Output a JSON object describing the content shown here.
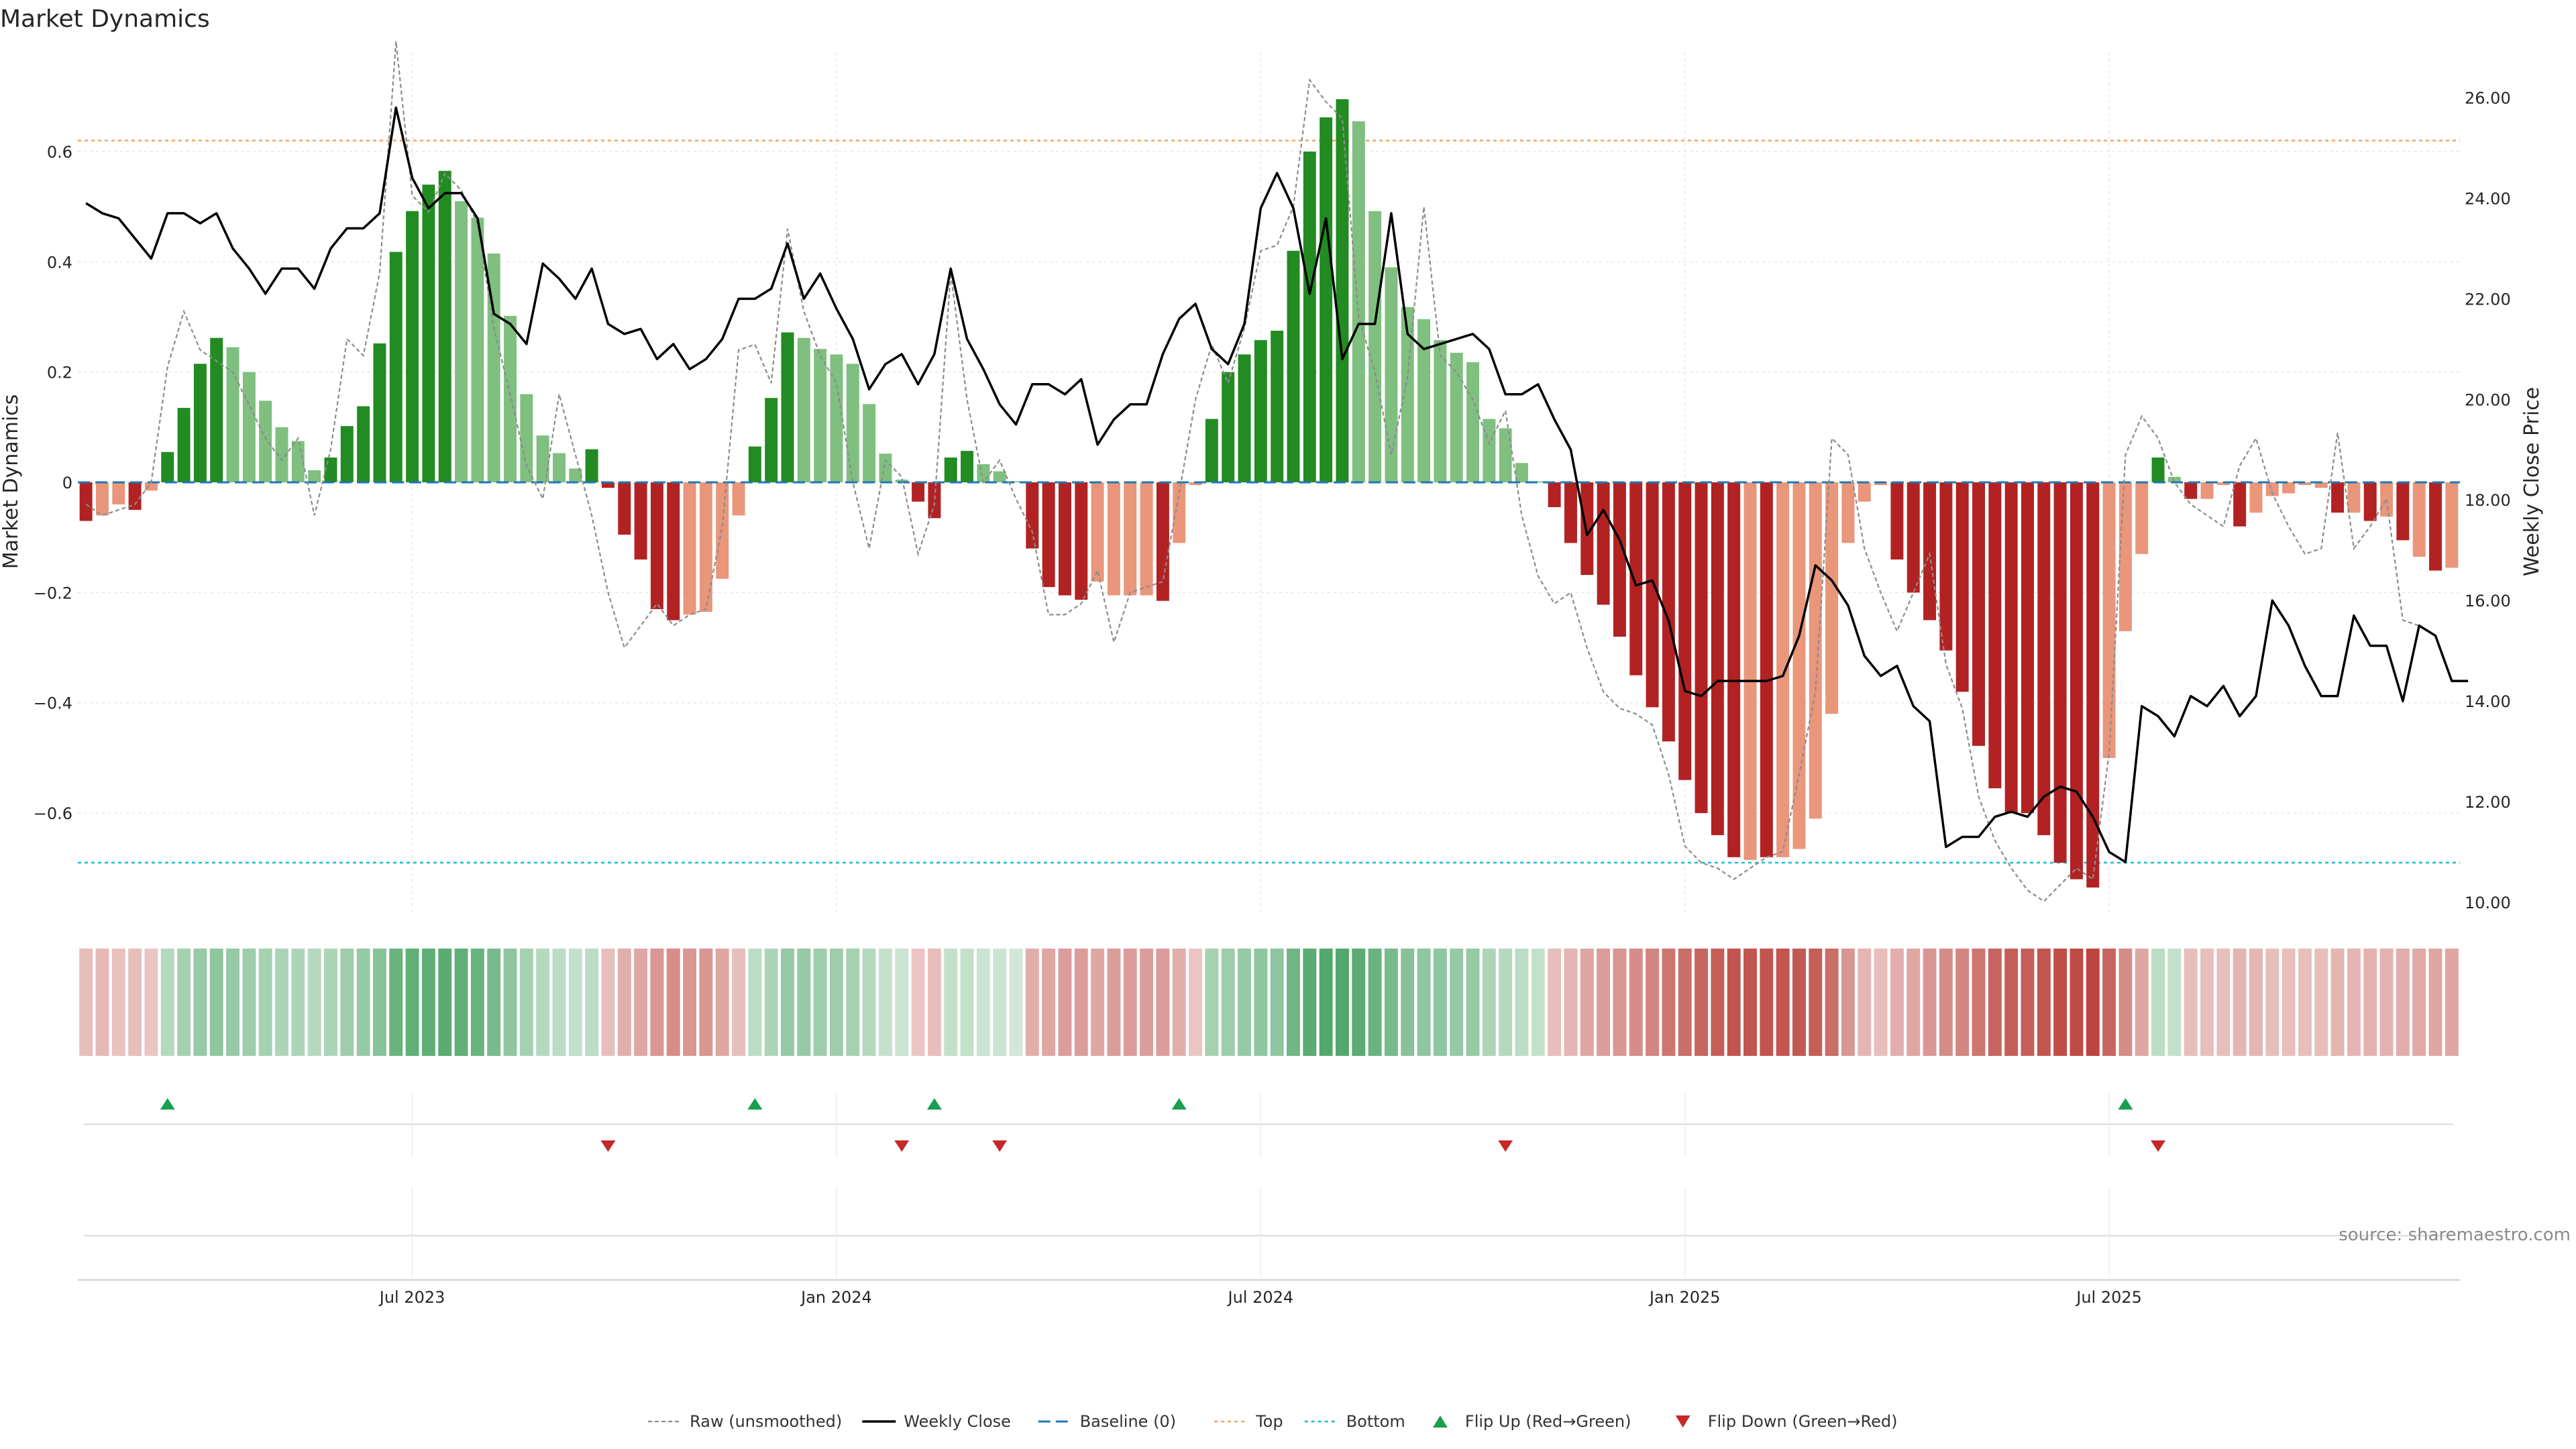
{
  "chart_data": {
    "type": "bar",
    "title": "Market Dynamics",
    "ylabel": "Market Dynamics",
    "y2label": "Weekly Close Price",
    "ylim": [
      -0.78,
      0.78
    ],
    "y2lim": [
      9.8,
      26.9
    ],
    "yticks": [
      {
        "v": 0.6,
        "label": "0.6"
      },
      {
        "v": 0.4,
        "label": "0.4"
      },
      {
        "v": 0.2,
        "label": "0.2"
      },
      {
        "v": 0,
        "label": "0"
      },
      {
        "v": -0.2,
        "label": "−0.2"
      },
      {
        "v": -0.4,
        "label": "−0.4"
      },
      {
        "v": -0.6,
        "label": "−0.6"
      }
    ],
    "y2ticks": [
      {
        "v": 26,
        "label": "26.00"
      },
      {
        "v": 24,
        "label": "24.00"
      },
      {
        "v": 22,
        "label": "22.00"
      },
      {
        "v": 20,
        "label": "20.00"
      },
      {
        "v": 18,
        "label": "18.00"
      },
      {
        "v": 16,
        "label": "16.00"
      },
      {
        "v": 14,
        "label": "14.00"
      },
      {
        "v": 12,
        "label": "12.00"
      },
      {
        "v": 10,
        "label": "10.00"
      }
    ],
    "xticks": [
      {
        "week": 20,
        "label": "Jul 2023"
      },
      {
        "week": 46,
        "label": "Jan 2024"
      },
      {
        "week": 72,
        "label": "Jul 2024"
      },
      {
        "week": 98,
        "label": "Jan 2025"
      },
      {
        "week": 124,
        "label": "Jul 2025"
      }
    ],
    "top_line": 0.62,
    "bottom_line": -0.69,
    "baseline": 0,
    "histogram": [
      -0.07,
      -0.06,
      -0.04,
      -0.05,
      -0.015,
      0.055,
      0.135,
      0.215,
      0.262,
      0.245,
      0.2,
      0.148,
      0.1,
      0.075,
      0.022,
      0.045,
      0.102,
      0.138,
      0.252,
      0.418,
      0.492,
      0.54,
      0.565,
      0.51,
      0.48,
      0.415,
      0.302,
      0.16,
      0.085,
      0.053,
      0.025,
      0.06,
      -0.01,
      -0.095,
      -0.14,
      -0.23,
      -0.25,
      -0.24,
      -0.235,
      -0.175,
      -0.06,
      0.065,
      0.153,
      0.272,
      0.262,
      0.242,
      0.232,
      0.215,
      0.142,
      0.052,
      0.005,
      -0.035,
      -0.065,
      0.045,
      0.057,
      0.033,
      0.02,
      0.002,
      -0.12,
      -0.19,
      -0.205,
      -0.213,
      -0.18,
      -0.205,
      -0.205,
      -0.205,
      -0.215,
      -0.11,
      -0.005,
      0.115,
      0.2,
      0.232,
      0.258,
      0.275,
      0.42,
      0.6,
      0.662,
      0.695,
      0.655,
      0.492,
      0.39,
      0.318,
      0.296,
      0.258,
      0.235,
      0.218,
      0.115,
      0.098,
      0.035,
      0.002,
      -0.045,
      -0.11,
      -0.168,
      -0.222,
      -0.28,
      -0.35,
      -0.408,
      -0.47,
      -0.54,
      -0.6,
      -0.64,
      -0.68,
      -0.685,
      -0.68,
      -0.68,
      -0.665,
      -0.61,
      -0.42,
      -0.11,
      -0.035,
      -0.005,
      -0.14,
      -0.2,
      -0.25,
      -0.305,
      -0.38,
      -0.478,
      -0.555,
      -0.6,
      -0.6,
      -0.64,
      -0.69,
      -0.72,
      -0.735,
      -0.5,
      -0.27,
      -0.13,
      0.045,
      0.01,
      -0.03,
      -0.03,
      -0.005,
      -0.08,
      -0.055,
      -0.025,
      -0.02,
      -0.005,
      -0.01,
      -0.055,
      -0.055,
      -0.07,
      -0.062,
      -0.105,
      -0.135,
      -0.16,
      -0.155
    ],
    "bar_state": [
      "dn",
      "fall",
      "fall",
      "dn",
      "fall",
      "up",
      "up",
      "up",
      "up",
      "fade",
      "fade",
      "fade",
      "fade",
      "fade",
      "fade",
      "up",
      "up",
      "up",
      "up",
      "up",
      "up",
      "up",
      "up",
      "fade",
      "fade",
      "fade",
      "fade",
      "fade",
      "fade",
      "fade",
      "fade",
      "up",
      "dn",
      "dn",
      "dn",
      "dn",
      "dn",
      "fall",
      "fall",
      "fall",
      "fall",
      "up",
      "up",
      "up",
      "fade",
      "fade",
      "fade",
      "fade",
      "fade",
      "fade",
      "fade",
      "dn",
      "dn",
      "up",
      "up",
      "fade",
      "fade",
      "fade",
      "dn",
      "dn",
      "dn",
      "dn",
      "fall",
      "fall",
      "fall",
      "fall",
      "dn",
      "fall",
      "fall",
      "up",
      "up",
      "up",
      "up",
      "up",
      "up",
      "up",
      "up",
      "up",
      "fade",
      "fade",
      "fade",
      "fade",
      "fade",
      "fade",
      "fade",
      "fade",
      "fade",
      "fade",
      "fade",
      "fade",
      "dn",
      "dn",
      "dn",
      "dn",
      "dn",
      "dn",
      "dn",
      "dn",
      "dn",
      "dn",
      "dn",
      "dn",
      "fall",
      "dn",
      "fall",
      "fall",
      "fall",
      "fall",
      "fall",
      "fall",
      "fall",
      "dn",
      "dn",
      "dn",
      "dn",
      "dn",
      "dn",
      "dn",
      "dn",
      "dn",
      "dn",
      "dn",
      "dn",
      "dn",
      "fall",
      "fall",
      "fall",
      "up",
      "fade",
      "dn",
      "fall",
      "fall",
      "dn",
      "fall",
      "fall",
      "fall",
      "fall",
      "fall",
      "dn",
      "fall",
      "dn",
      "fall",
      "dn",
      "fall",
      "dn",
      "fall"
    ],
    "raw": [
      -0.04,
      -0.06,
      -0.05,
      -0.04,
      0.0,
      0.21,
      0.31,
      0.24,
      0.22,
      0.2,
      0.14,
      0.08,
      0.04,
      0.08,
      -0.06,
      0.06,
      0.26,
      0.23,
      0.38,
      0.8,
      0.52,
      0.49,
      0.56,
      0.53,
      0.47,
      0.28,
      0.16,
      0.03,
      -0.03,
      0.16,
      0.05,
      -0.06,
      -0.2,
      -0.3,
      -0.26,
      -0.22,
      -0.26,
      -0.24,
      -0.23,
      -0.08,
      0.24,
      0.25,
      0.18,
      0.46,
      0.31,
      0.23,
      0.18,
      0.0,
      -0.12,
      0.04,
      0.01,
      -0.13,
      -0.04,
      0.38,
      0.15,
      0.0,
      0.04,
      -0.03,
      -0.09,
      -0.24,
      -0.24,
      -0.22,
      -0.16,
      -0.29,
      -0.2,
      -0.19,
      -0.18,
      -0.02,
      0.15,
      0.25,
      0.18,
      0.28,
      0.42,
      0.43,
      0.5,
      0.73,
      0.69,
      0.66,
      0.3,
      0.2,
      0.05,
      0.19,
      0.5,
      0.23,
      0.2,
      0.15,
      0.07,
      0.13,
      -0.06,
      -0.17,
      -0.22,
      -0.2,
      -0.3,
      -0.38,
      -0.41,
      -0.42,
      -0.44,
      -0.53,
      -0.66,
      -0.69,
      -0.7,
      -0.72,
      -0.7,
      -0.68,
      -0.67,
      -0.53,
      -0.38,
      0.08,
      0.05,
      -0.12,
      -0.2,
      -0.27,
      -0.2,
      -0.13,
      -0.33,
      -0.41,
      -0.57,
      -0.65,
      -0.7,
      -0.74,
      -0.76,
      -0.73,
      -0.7,
      -0.72,
      -0.49,
      0.05,
      0.12,
      0.08,
      0.0,
      -0.04,
      -0.06,
      -0.08,
      0.03,
      0.08,
      -0.02,
      -0.08,
      -0.13,
      -0.12,
      0.09,
      -0.12,
      -0.08,
      -0.03,
      -0.25,
      -0.26
    ],
    "price": [
      23.9,
      23.7,
      23.6,
      23.2,
      22.8,
      23.7,
      23.7,
      23.5,
      23.7,
      23.0,
      22.6,
      22.1,
      22.6,
      22.6,
      22.2,
      23.0,
      23.4,
      23.4,
      23.7,
      25.8,
      24.4,
      23.8,
      24.1,
      24.1,
      23.6,
      21.7,
      21.5,
      21.1,
      22.7,
      22.4,
      22.0,
      22.6,
      21.5,
      21.3,
      21.4,
      20.8,
      21.1,
      20.6,
      20.8,
      21.2,
      22.0,
      22.0,
      22.2,
      23.1,
      22.0,
      22.5,
      21.8,
      21.2,
      20.2,
      20.7,
      20.9,
      20.3,
      20.9,
      22.6,
      21.2,
      20.6,
      19.9,
      19.5,
      20.3,
      20.3,
      20.1,
      20.4,
      19.1,
      19.6,
      19.9,
      19.9,
      20.9,
      21.6,
      21.9,
      21.0,
      20.7,
      21.5,
      23.8,
      24.5,
      23.8,
      22.1,
      23.6,
      20.8,
      21.5,
      21.5,
      23.7,
      21.3,
      21.0,
      21.1,
      21.2,
      21.3,
      21.0,
      20.1,
      20.1,
      20.3,
      19.6,
      19.0,
      17.3,
      17.8,
      17.2,
      16.3,
      16.4,
      15.6,
      14.2,
      14.1,
      14.4,
      14.4,
      14.4,
      14.4,
      14.5,
      15.3,
      16.7,
      16.4,
      15.9,
      14.9,
      14.5,
      14.7,
      13.9,
      13.6,
      11.1,
      11.3,
      11.3,
      11.7,
      11.8,
      11.7,
      12.1,
      12.3,
      12.2,
      11.7,
      11.0,
      10.8,
      13.9,
      13.7,
      13.3,
      14.1,
      13.9,
      14.3,
      13.7,
      14.1,
      16.0,
      15.5,
      14.7,
      14.1,
      14.1,
      15.7,
      15.1,
      15.1,
      14.0,
      15.5,
      15.3,
      14.4,
      14.4
    ],
    "heat_strength": [
      0.25,
      0.28,
      0.22,
      0.25,
      0.2,
      0.35,
      0.45,
      0.55,
      0.6,
      0.55,
      0.5,
      0.45,
      0.4,
      0.4,
      0.35,
      0.4,
      0.5,
      0.55,
      0.65,
      0.85,
      0.9,
      0.92,
      0.95,
      0.9,
      0.85,
      0.75,
      0.6,
      0.45,
      0.35,
      0.3,
      0.25,
      0.3,
      0.25,
      0.35,
      0.4,
      0.5,
      0.55,
      0.5,
      0.5,
      0.4,
      0.25,
      0.3,
      0.4,
      0.55,
      0.55,
      0.5,
      0.5,
      0.45,
      0.35,
      0.25,
      0.2,
      0.2,
      0.25,
      0.25,
      0.25,
      0.2,
      0.2,
      0.15,
      0.35,
      0.4,
      0.45,
      0.45,
      0.4,
      0.45,
      0.45,
      0.45,
      0.45,
      0.35,
      0.2,
      0.45,
      0.5,
      0.55,
      0.6,
      0.6,
      0.8,
      0.95,
      1.0,
      1.0,
      0.95,
      0.85,
      0.75,
      0.65,
      0.6,
      0.6,
      0.55,
      0.55,
      0.4,
      0.35,
      0.3,
      0.25,
      0.25,
      0.3,
      0.4,
      0.45,
      0.5,
      0.55,
      0.6,
      0.7,
      0.75,
      0.8,
      0.85,
      0.9,
      0.9,
      0.9,
      0.9,
      0.88,
      0.85,
      0.75,
      0.5,
      0.3,
      0.25,
      0.35,
      0.4,
      0.5,
      0.55,
      0.6,
      0.7,
      0.8,
      0.85,
      0.85,
      0.9,
      0.95,
      0.97,
      1.0,
      0.8,
      0.55,
      0.4,
      0.3,
      0.25,
      0.25,
      0.25,
      0.25,
      0.3,
      0.3,
      0.25,
      0.25,
      0.25,
      0.25,
      0.3,
      0.3,
      0.32,
      0.32,
      0.35,
      0.38,
      0.4,
      0.4
    ],
    "flip_up_weeks": [
      5,
      41,
      52,
      67,
      125
    ],
    "flip_down_weeks": [
      32,
      50,
      56,
      87,
      127
    ],
    "legend": [
      {
        "key": "raw",
        "label": "Raw (unsmoothed)"
      },
      {
        "key": "close",
        "label": "Weekly Close"
      },
      {
        "key": "baseline",
        "label": "Baseline (0)"
      },
      {
        "key": "top",
        "label": "Top"
      },
      {
        "key": "bottom",
        "label": "Bottom"
      },
      {
        "key": "flip_up",
        "label": "Flip Up (Red→Green)"
      },
      {
        "key": "flip_down",
        "label": "Flip Down (Green→Red)"
      }
    ],
    "legend_position": "bottom-center",
    "source": "source: sharemaestro.com",
    "colors": {
      "up": "#228b22",
      "fade": "#7fbf7f",
      "dn": "#b22222",
      "fall": "#e9967a",
      "raw": "#8c8c8c",
      "close": "#000000",
      "baseline": "#1f77b4",
      "top": "#f4a460",
      "bottom": "#17becf",
      "flip_up": "#1a9e50",
      "flip_down": "#c62828",
      "heat_green": "#3a9a56",
      "heat_red": "#b22a22",
      "grid": "#e6e6e6"
    }
  }
}
